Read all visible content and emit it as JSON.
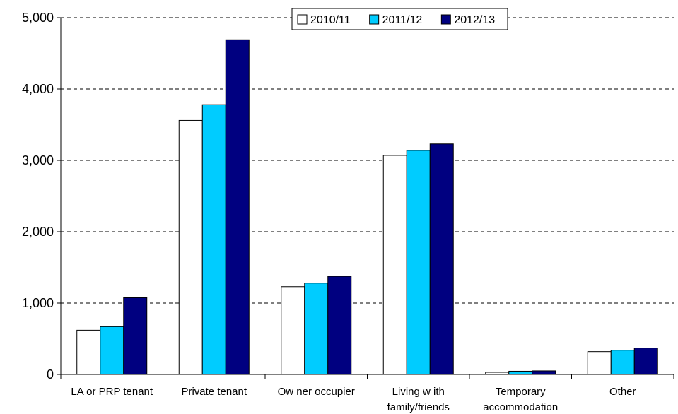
{
  "chart_data": {
    "type": "bar",
    "title": "",
    "xlabel": "",
    "ylabel": "",
    "categories": [
      [
        "LA or PRP tenant"
      ],
      [
        "Private tenant"
      ],
      [
        "Ow ner occupier"
      ],
      [
        "Living w ith",
        "family/friends"
      ],
      [
        "Temporary",
        "accommodation"
      ],
      [
        "Other"
      ]
    ],
    "series": [
      {
        "name": "2010/11",
        "color": "#ffffff",
        "values": [
          620,
          3560,
          1230,
          3070,
          30,
          320
        ]
      },
      {
        "name": "2011/12",
        "color": "#00ccff",
        "values": [
          670,
          3780,
          1280,
          3140,
          45,
          340
        ]
      },
      {
        "name": "2012/13",
        "color": "#000080",
        "values": [
          1075,
          4690,
          1375,
          3230,
          50,
          370
        ]
      }
    ],
    "ylim": [
      0,
      5000
    ],
    "yticks": [
      0,
      1000,
      2000,
      3000,
      4000,
      5000
    ],
    "ytick_labels": [
      "0",
      "1,000",
      "2,000",
      "3,000",
      "4,000",
      "5,000"
    ],
    "grid": "horizontal-dashed",
    "legend": "top-center"
  }
}
